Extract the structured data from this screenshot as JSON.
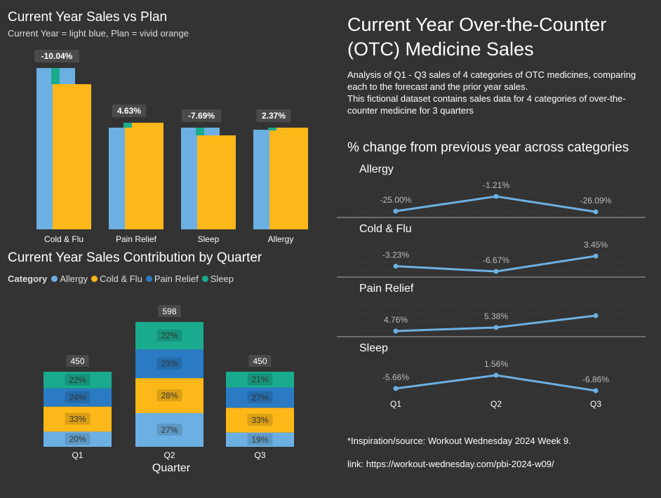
{
  "colors": {
    "background": "#333333",
    "current": "#6cb0e3",
    "plan": "#fcb719",
    "variance_marker": "#1aab8e",
    "allergy": "#6cb0e3",
    "cold_flu": "#fcb719",
    "pain_relief": "#2a7bc4",
    "sleep": "#1aab8e",
    "line": "#6cb0e3"
  },
  "header": {
    "title": "Current Year Over-the-Counter (OTC) Medicine Sales",
    "desc_line1": "Analysis of Q1 - Q3 sales of 4 categories of OTC medicines, comparing each to the forecast and the prior year sales.",
    "desc_line2": "This fictional dataset contains sales data for 4 categories of over-the-counter medicine for 3 quarters"
  },
  "footer": {
    "source": "*Inspiration/source: Workout Wednesday 2024 Week 9.",
    "link": "link: https://workout-wednesday.com/pbi-2024-w09/"
  },
  "chart_data": [
    {
      "type": "bar",
      "title": "Current Year Sales vs Plan",
      "subtitle": "Current Year = light blue, Plan = vivid orange",
      "categories": [
        "Cold & Flu",
        "Pain Relief",
        "Sleep",
        "Allergy"
      ],
      "series": [
        {
          "name": "Current Year",
          "values": [
            230,
            145,
            145,
            142
          ]
        },
        {
          "name": "Plan",
          "values": [
            207,
            152,
            134,
            145
          ]
        }
      ],
      "data_labels": [
        "-10.04%",
        "4.63%",
        "-7.69%",
        "2.37%"
      ],
      "ylim": [
        0,
        250
      ]
    },
    {
      "type": "bar",
      "title": "Current Year Sales Contribution by Quarter",
      "legend_title": "Category",
      "legend": [
        "Allergy",
        "Cold & Flu",
        "Pain Relief",
        "Sleep"
      ],
      "xlabel": "Quarter",
      "categories": [
        "Q1",
        "Q2",
        "Q3"
      ],
      "totals": [
        "450",
        "598",
        "450"
      ],
      "series": [
        {
          "name": "Allergy",
          "values": [
            20,
            27,
            19
          ],
          "labels": [
            "20%",
            "27%",
            "19%"
          ]
        },
        {
          "name": "Cold & Flu",
          "values": [
            33,
            28,
            33
          ],
          "labels": [
            "33%",
            "28%",
            "33%"
          ]
        },
        {
          "name": "Pain Relief",
          "values": [
            24,
            23,
            27
          ],
          "labels": [
            "24%",
            "23%",
            "27%"
          ]
        },
        {
          "name": "Sleep",
          "values": [
            22,
            22,
            21
          ],
          "labels": [
            "22%",
            "22%",
            "21%"
          ]
        }
      ]
    },
    {
      "type": "line",
      "title": "% change from previous year across categories",
      "categories": [
        "Q1",
        "Q2",
        "Q3"
      ],
      "panels": [
        {
          "name": "Allergy",
          "values": [
            -25.0,
            -1.21,
            -26.09
          ],
          "labels": [
            "-25.00%",
            "-1.21%",
            "-26.09%"
          ]
        },
        {
          "name": "Cold & Flu",
          "values": [
            -3.23,
            -6.67,
            3.45
          ],
          "labels": [
            "-3.23%",
            "-6.67%",
            "3.45%"
          ]
        },
        {
          "name": "Pain Relief",
          "values": [
            4.76,
            5.38,
            7.41
          ],
          "labels": [
            "4.76%",
            "5.38%",
            ""
          ]
        },
        {
          "name": "Sleep",
          "values": [
            -5.66,
            1.56,
            -6.86
          ],
          "labels": [
            "-5.66%",
            "1.56%",
            "-6.86%"
          ]
        }
      ]
    }
  ]
}
